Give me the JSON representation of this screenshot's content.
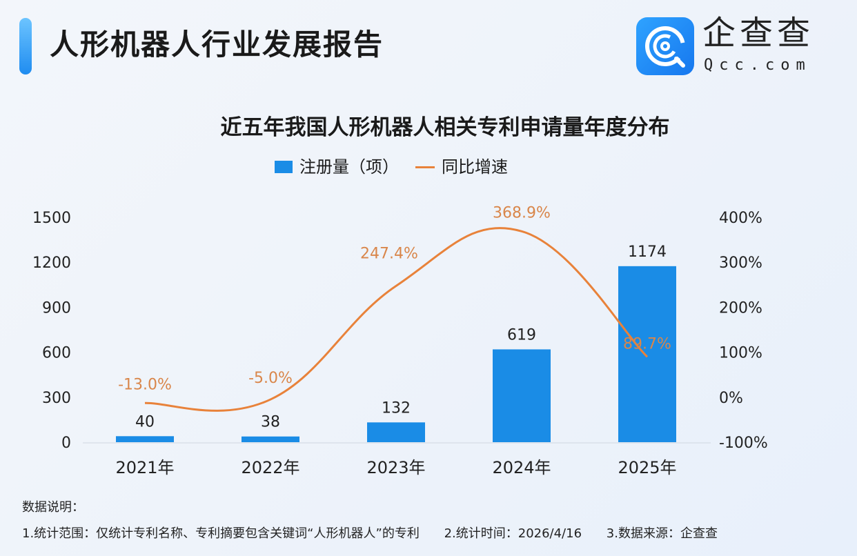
{
  "header": {
    "title": "人形机器人行业发展报告",
    "logo": {
      "name": "企查查",
      "sub": "Qcc.com",
      "icon": "qcc-logo-icon"
    }
  },
  "chart_data": {
    "type": "bar+line",
    "title": "近五年我国人形机器人相关专利申请量年度分布",
    "categories": [
      "2021年",
      "2022年",
      "2023年",
      "2024年",
      "2025年"
    ],
    "series": [
      {
        "name": "注册量（项）",
        "type": "bar",
        "axis": "left",
        "values": [
          40,
          38,
          132,
          619,
          1174
        ],
        "labels": [
          "40",
          "38",
          "132",
          "619",
          "1174"
        ],
        "color": "#1a8ce6"
      },
      {
        "name": "同比增速",
        "type": "line",
        "axis": "right",
        "values": [
          -13.0,
          -5.0,
          247.4,
          368.9,
          89.7
        ],
        "labels": [
          "-13.0%",
          "-5.0%",
          "247.4%",
          "368.9%",
          "89.7%"
        ],
        "color": "#e8823a"
      }
    ],
    "y_left": {
      "ticks": [
        "0",
        "300",
        "600",
        "900",
        "1200",
        "1500"
      ],
      "range": [
        0,
        1500
      ]
    },
    "y_right": {
      "ticks": [
        "-100%",
        "0%",
        "100%",
        "200%",
        "300%",
        "400%"
      ],
      "range": [
        -100,
        400
      ]
    },
    "legend": "top-center",
    "grid": false
  },
  "notes": {
    "heading": "数据说明：",
    "items": [
      "1.统计范围：仅统计专利名称、专利摘要包含关键词“人形机器人”的专利",
      "2.统计时间：2026/4/16",
      "3.数据来源：企查查"
    ]
  }
}
